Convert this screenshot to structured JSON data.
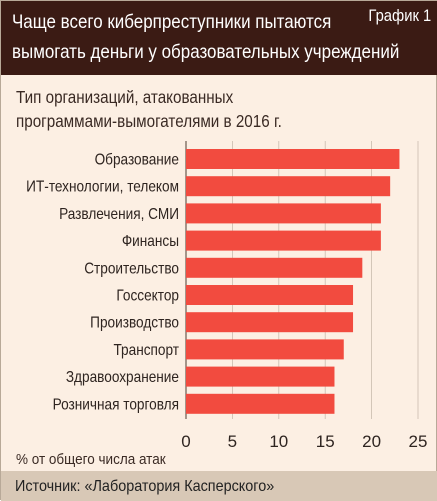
{
  "header": {
    "title_line1": "Чаще всего киберпреступники пытаются",
    "title_line2": "вымогать деньги у образовательных учреждений",
    "graph_label": "График 1"
  },
  "subtitle": {
    "line1": "Тип организаций, атакованных",
    "line2": "программами-вымогателями в 2016 г."
  },
  "axis_caption": "% от общего числа атак",
  "source": "Источник: «Лаборатория Касперского»",
  "colors": {
    "bar": "#f24b3f",
    "header_bg": "#3b1b14",
    "background": "#fcefe3",
    "footer_bg": "#d8c8b6",
    "grid": "#c9bcae"
  },
  "chart_data": {
    "type": "bar",
    "orientation": "horizontal",
    "categories": [
      "Образование",
      "ИТ-технологии, телеком",
      "Развлечения, СМИ",
      "Финансы",
      "Строительство",
      "Госсектор",
      "Производство",
      "Транспорт",
      "Здравоохранение",
      "Розничная торговля"
    ],
    "values": [
      23,
      22,
      21,
      21,
      19,
      18,
      18,
      17,
      16,
      16
    ],
    "xlim": [
      0,
      25
    ],
    "xticks": [
      "0",
      "5",
      "10",
      "15",
      "20",
      "25"
    ],
    "xtick_values": [
      0,
      5,
      10,
      15,
      20,
      25
    ],
    "xlabel": "% от общего числа атак",
    "grid": "vertical"
  }
}
